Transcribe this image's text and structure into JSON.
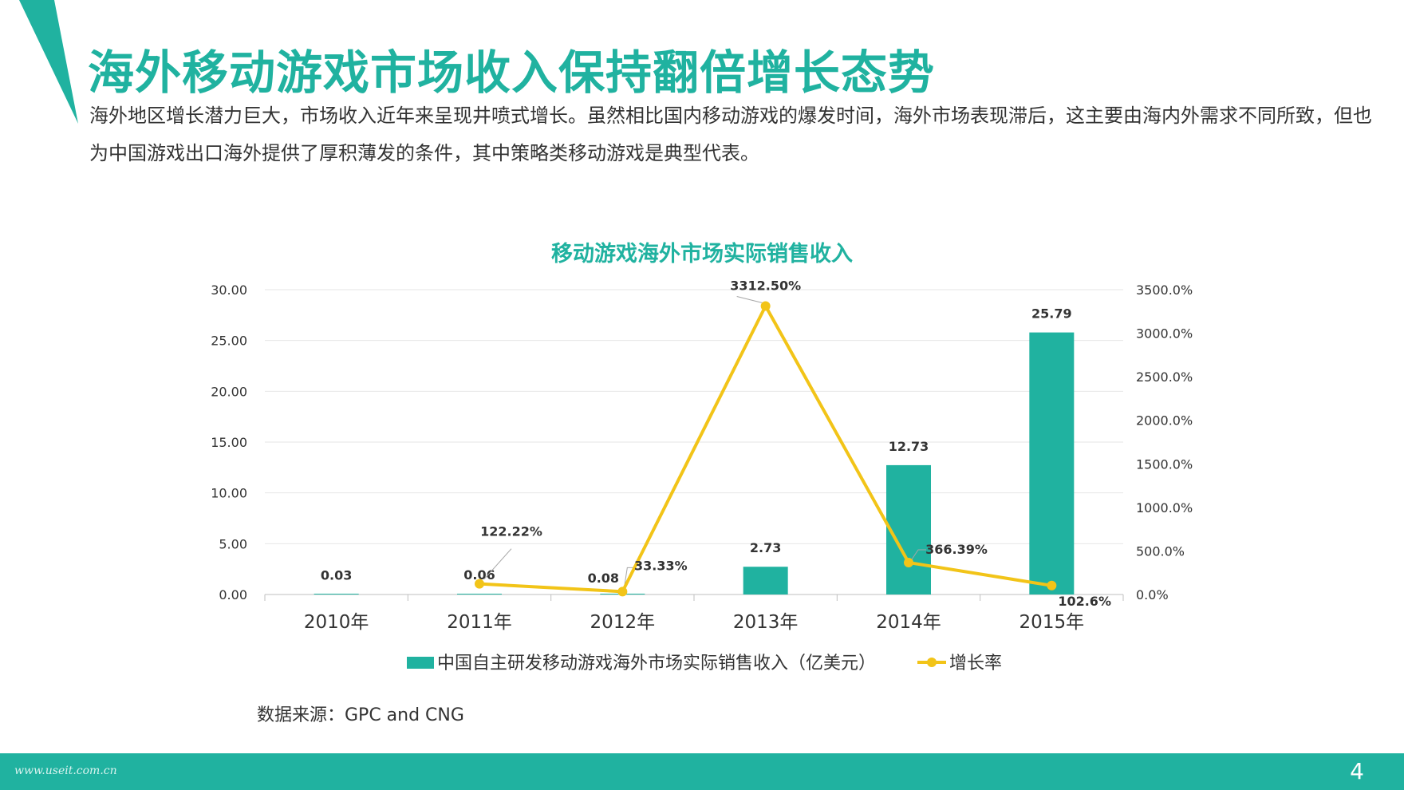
{
  "page": {
    "title": "海外移动游戏市场收入保持翻倍增长态势",
    "intro": "海外地区增长潜力巨大，市场收入近年来呈现井喷式增长。虽然相比国内移动游戏的爆发时间，海外市场表现滞后，这主要由海内外需求不同所致，但也为中国游戏出口海外提供了厚积薄发的条件，其中策略类移动游戏是典型代表。",
    "source": "数据来源：GPC and CNG",
    "footer_url": "www.useit.com.cn",
    "page_number": "4"
  },
  "colors": {
    "accent": "#20b2a0",
    "line": "#f2c418",
    "text": "#333333",
    "grid": "#e6e6e6"
  },
  "chart_data": {
    "type": "bar",
    "title": "移动游戏海外市场实际销售收入",
    "categories": [
      "2010年",
      "2011年",
      "2012年",
      "2013年",
      "2014年",
      "2015年"
    ],
    "y_left": {
      "range": [
        0,
        30
      ],
      "ticks": [
        "0.00",
        "5.00",
        "10.00",
        "15.00",
        "20.00",
        "25.00",
        "30.00"
      ]
    },
    "y_right": {
      "range": [
        0,
        3500
      ],
      "ticks": [
        "0.0%",
        "500.0%",
        "1000.0%",
        "1500.0%",
        "2000.0%",
        "2500.0%",
        "3000.0%",
        "3500.0%"
      ]
    },
    "series": [
      {
        "name": "中国自主研发移动游戏海外市场实际销售收入（亿美元）",
        "type": "bar",
        "axis": "left",
        "values": [
          0.03,
          0.06,
          0.08,
          2.73,
          12.73,
          25.79
        ],
        "labels": [
          "0.03",
          "0.06",
          "0.08",
          "2.73",
          "12.73",
          "25.79"
        ]
      },
      {
        "name": "增长率",
        "type": "line",
        "axis": "right",
        "points": [
          {
            "category": "2011年",
            "value": 122.22,
            "label": "122.22%"
          },
          {
            "category": "2012年",
            "value": 33.33,
            "label": "33.33%"
          },
          {
            "category": "2013年",
            "value": 3312.5,
            "label": "3312.50%"
          },
          {
            "category": "2014年",
            "value": 366.39,
            "label": "366.39%"
          },
          {
            "category": "2015年",
            "value": 102.6,
            "label": "102.6%"
          }
        ]
      }
    ],
    "grid": true,
    "legend_position": "bottom"
  }
}
